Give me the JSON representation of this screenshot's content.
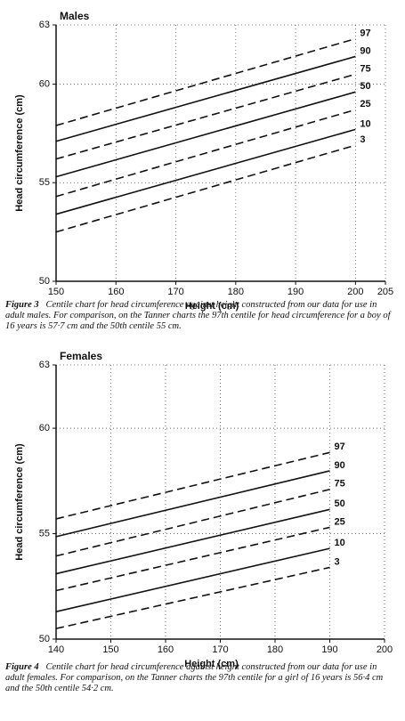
{
  "chart_data": [
    {
      "type": "line",
      "title": "Males",
      "x_label": "Height (cm)",
      "y_label": "Head circumference (cm)",
      "xlim": [
        150,
        205
      ],
      "xticks": [
        150,
        160,
        170,
        180,
        190,
        200,
        205
      ],
      "ylim": [
        50,
        63
      ],
      "yticks": [
        50,
        55,
        60,
        63
      ],
      "grid": true,
      "x": [
        150,
        200
      ],
      "series": [
        {
          "name": "97",
          "color": "#111111",
          "dashed": true,
          "values": [
            57.9,
            62.3
          ]
        },
        {
          "name": "90",
          "color": "#111111",
          "dashed": false,
          "values": [
            57.1,
            61.4
          ]
        },
        {
          "name": "75",
          "color": "#111111",
          "dashed": true,
          "values": [
            56.2,
            60.5
          ]
        },
        {
          "name": "50",
          "color": "#111111",
          "dashed": false,
          "values": [
            55.3,
            59.6
          ]
        },
        {
          "name": "25",
          "color": "#111111",
          "dashed": true,
          "values": [
            54.3,
            58.7
          ]
        },
        {
          "name": "10",
          "color": "#111111",
          "dashed": false,
          "values": [
            53.4,
            57.7
          ]
        },
        {
          "name": "3",
          "color": "#111111",
          "dashed": true,
          "values": [
            52.5,
            56.9
          ]
        }
      ],
      "caption_label": "Figure 3",
      "caption": "Centile chart for head circumference against height constructed from our data for use in adult males. For comparison, on the Tanner charts the 97th centile for head circumference for a boy of 16 years is 57·7 cm and the 50th centile 55 cm."
    },
    {
      "type": "line",
      "title": "Females",
      "x_label": "Height (cm)",
      "y_label": "Head circumference (cm)",
      "xlim": [
        140,
        200
      ],
      "xticks": [
        140,
        150,
        160,
        170,
        180,
        190,
        200
      ],
      "ylim": [
        50,
        63
      ],
      "yticks": [
        50,
        55,
        60,
        63
      ],
      "grid": true,
      "x": [
        140,
        190
      ],
      "series": [
        {
          "name": "97",
          "color": "#111111",
          "dashed": true,
          "values": [
            55.7,
            58.85
          ]
        },
        {
          "name": "90",
          "color": "#111111",
          "dashed": false,
          "values": [
            54.86,
            57.98
          ]
        },
        {
          "name": "75",
          "color": "#111111",
          "dashed": true,
          "values": [
            53.94,
            57.1
          ]
        },
        {
          "name": "50",
          "color": "#111111",
          "dashed": false,
          "values": [
            53.1,
            56.15
          ]
        },
        {
          "name": "25",
          "color": "#111111",
          "dashed": true,
          "values": [
            52.3,
            55.3
          ]
        },
        {
          "name": "10",
          "color": "#111111",
          "dashed": false,
          "values": [
            51.3,
            54.3
          ]
        },
        {
          "name": "3",
          "color": "#111111",
          "dashed": true,
          "values": [
            50.5,
            53.4
          ]
        }
      ],
      "caption_label": "Figure 4",
      "caption": "Centile chart for head circumference against height constructed from our data for use in adult females. For comparison, on the Tanner charts the 97th centile for a girl of 16 years is 56·4 cm and the 50th centile 54·2 cm."
    }
  ]
}
